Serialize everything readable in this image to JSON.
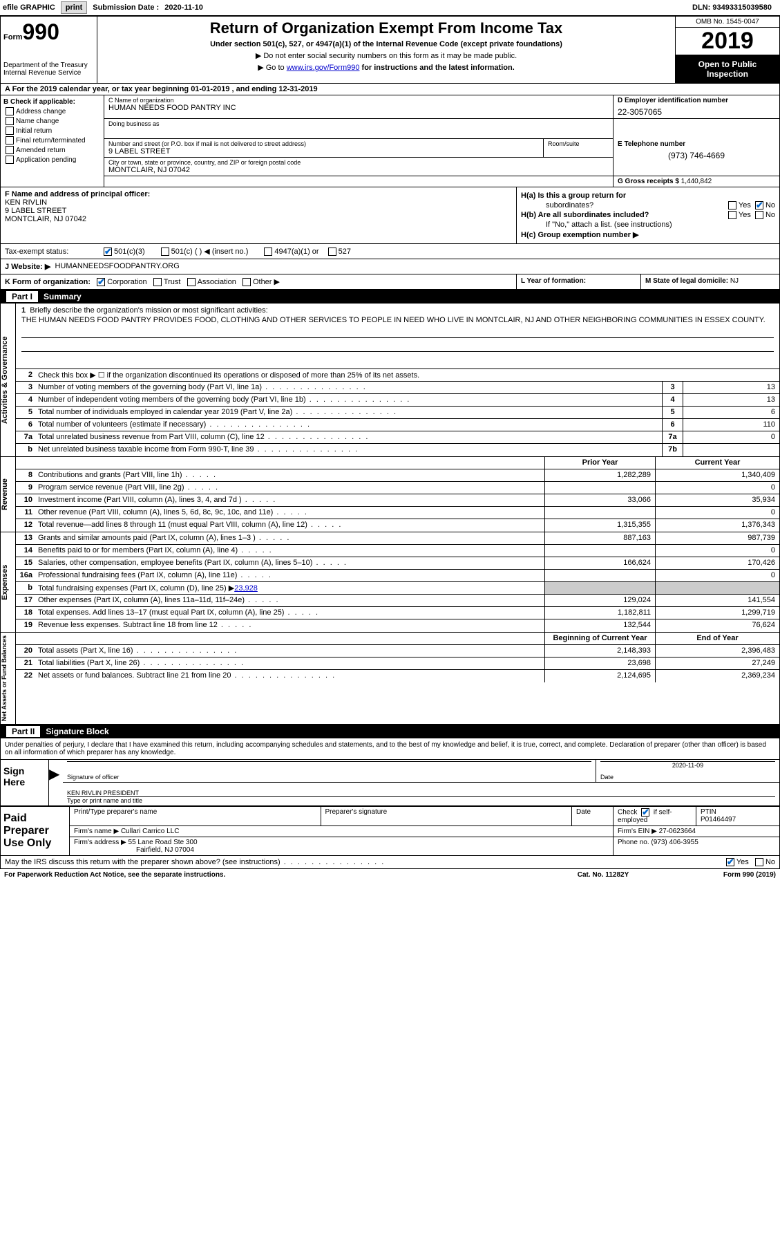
{
  "topbar": {
    "efile_label": "efile GRAPHIC",
    "print": "print",
    "submission_label": "Submission Date :",
    "submission_date": "2020-11-10",
    "dln_label": "DLN:",
    "dln": "93493315039580"
  },
  "header": {
    "form_label": "Form",
    "form_num": "990",
    "dept": "Department of the Treasury\nInternal Revenue Service",
    "title": "Return of Organization Exempt From Income Tax",
    "subtitle": "Under section 501(c), 527, or 4947(a)(1) of the Internal Revenue Code (except private foundations)",
    "instr1": "▶ Do not enter social security numbers on this form as it may be made public.",
    "instr2_pre": "▶ Go to ",
    "instr2_link": "www.irs.gov/Form990",
    "instr2_post": " for instructions and the latest information.",
    "omb": "OMB No. 1545-0047",
    "year": "2019",
    "inspection": "Open to Public Inspection"
  },
  "period": "A For the 2019 calendar year, or tax year beginning 01-01-2019   , and ending 12-31-2019",
  "boxB": {
    "header": "B Check if applicable:",
    "items": [
      "Address change",
      "Name change",
      "Initial return",
      "Final return/terminated",
      "Amended return",
      "Application pending"
    ]
  },
  "boxC": {
    "name_label": "C Name of organization",
    "name": "HUMAN NEEDS FOOD PANTRY INC",
    "dba_label": "Doing business as",
    "addr_label": "Number and street (or P.O. box if mail is not delivered to street address)",
    "room_label": "Room/suite",
    "addr": "9 LABEL STREET",
    "city_label": "City or town, state or province, country, and ZIP or foreign postal code",
    "city": "MONTCLAIR, NJ  07042"
  },
  "boxD": {
    "label": "D Employer identification number",
    "val": "22-3057065"
  },
  "boxE": {
    "label": "E Telephone number",
    "val": "(973) 746-4669"
  },
  "boxG": {
    "label": "G Gross receipts $",
    "val": "1,440,842"
  },
  "boxF": {
    "label": "F  Name and address of principal officer:",
    "name": "KEN RIVLIN",
    "addr1": "9 LABEL STREET",
    "addr2": "MONTCLAIR, NJ  07042"
  },
  "boxH": {
    "a_label": "H(a)  Is this a group return for",
    "a_sub": "subordinates?",
    "b_label": "H(b)  Are all subordinates included?",
    "b_note": "If \"No,\" attach a list. (see instructions)",
    "c_label": "H(c)  Group exemption number ▶",
    "yes": "Yes",
    "no": "No"
  },
  "taxStatus": {
    "label": "Tax-exempt status:",
    "opt1": "501(c)(3)",
    "opt2": "501(c) (   ) ◀ (insert no.)",
    "opt3": "4947(a)(1) or",
    "opt4": "527"
  },
  "website": {
    "label": "J   Website: ▶",
    "val": "HUMANNEEDSFOODPANTRY.ORG"
  },
  "boxK": {
    "label": "K Form of organization:",
    "opts": [
      "Corporation",
      "Trust",
      "Association",
      "Other ▶"
    ]
  },
  "boxL": {
    "label": "L Year of formation:"
  },
  "boxM": {
    "label": "M State of legal domicile:",
    "val": "NJ"
  },
  "partI": {
    "header_part": "Part I",
    "header_title": "Summary",
    "q1_label": "1",
    "q1_text": "Briefly describe the organization's mission or most significant activities:",
    "q1_mission": "THE HUMAN NEEDS FOOD PANTRY PROVIDES FOOD, CLOTHING AND OTHER SERVICES TO PEOPLE IN NEED WHO LIVE IN MONTCLAIR, NJ AND OTHER NEIGHBORING COMMUNITIES IN ESSEX COUNTY.",
    "q2_text": "Check this box ▶ ☐  if the organization discontinued its operations or disposed of more than 25% of its net assets.",
    "side1": "Activities & Governance",
    "side2": "Revenue",
    "side3": "Expenses",
    "side4": "Net Assets or Fund Balances",
    "col_prior": "Prior Year",
    "col_current": "Current Year",
    "col_begin": "Beginning of Current Year",
    "col_end": "End of Year",
    "lines_gov": [
      {
        "n": "3",
        "t": "Number of voting members of the governing body (Part VI, line 1a)",
        "box": "3",
        "v": "13"
      },
      {
        "n": "4",
        "t": "Number of independent voting members of the governing body (Part VI, line 1b)",
        "box": "4",
        "v": "13"
      },
      {
        "n": "5",
        "t": "Total number of individuals employed in calendar year 2019 (Part V, line 2a)",
        "box": "5",
        "v": "6"
      },
      {
        "n": "6",
        "t": "Total number of volunteers (estimate if necessary)",
        "box": "6",
        "v": "110"
      },
      {
        "n": "7a",
        "t": "Total unrelated business revenue from Part VIII, column (C), line 12",
        "box": "7a",
        "v": "0"
      },
      {
        "n": "b",
        "t": "Net unrelated business taxable income from Form 990-T, line 39",
        "box": "7b",
        "v": ""
      }
    ],
    "lines_rev": [
      {
        "n": "8",
        "t": "Contributions and grants (Part VIII, line 1h)",
        "p": "1,282,289",
        "c": "1,340,409"
      },
      {
        "n": "9",
        "t": "Program service revenue (Part VIII, line 2g)",
        "p": "",
        "c": "0"
      },
      {
        "n": "10",
        "t": "Investment income (Part VIII, column (A), lines 3, 4, and 7d )",
        "p": "33,066",
        "c": "35,934"
      },
      {
        "n": "11",
        "t": "Other revenue (Part VIII, column (A), lines 5, 6d, 8c, 9c, 10c, and 11e)",
        "p": "",
        "c": "0"
      },
      {
        "n": "12",
        "t": "Total revenue—add lines 8 through 11 (must equal Part VIII, column (A), line 12)",
        "p": "1,315,355",
        "c": "1,376,343"
      }
    ],
    "lines_exp": [
      {
        "n": "13",
        "t": "Grants and similar amounts paid (Part IX, column (A), lines 1–3 )",
        "p": "887,163",
        "c": "987,739"
      },
      {
        "n": "14",
        "t": "Benefits paid to or for members (Part IX, column (A), line 4)",
        "p": "",
        "c": "0"
      },
      {
        "n": "15",
        "t": "Salaries, other compensation, employee benefits (Part IX, column (A), lines 5–10)",
        "p": "166,624",
        "c": "170,426"
      },
      {
        "n": "16a",
        "t": "Professional fundraising fees (Part IX, column (A), line 11e)",
        "p": "",
        "c": "0"
      },
      {
        "n": "b",
        "t": "Total fundraising expenses (Part IX, column (D), line 25) ▶23,928",
        "p": "shaded",
        "c": "shaded"
      },
      {
        "n": "17",
        "t": "Other expenses (Part IX, column (A), lines 11a–11d, 11f–24e)",
        "p": "129,024",
        "c": "141,554"
      },
      {
        "n": "18",
        "t": "Total expenses. Add lines 13–17 (must equal Part IX, column (A), line 25)",
        "p": "1,182,811",
        "c": "1,299,719"
      },
      {
        "n": "19",
        "t": "Revenue less expenses. Subtract line 18 from line 12",
        "p": "132,544",
        "c": "76,624"
      }
    ],
    "lines_net": [
      {
        "n": "20",
        "t": "Total assets (Part X, line 16)",
        "p": "2,148,393",
        "c": "2,396,483"
      },
      {
        "n": "21",
        "t": "Total liabilities (Part X, line 26)",
        "p": "23,698",
        "c": "27,249"
      },
      {
        "n": "22",
        "t": "Net assets or fund balances. Subtract line 21 from line 20",
        "p": "2,124,695",
        "c": "2,369,234"
      }
    ]
  },
  "partII": {
    "header_part": "Part II",
    "header_title": "Signature Block",
    "penalty": "Under penalties of perjury, I declare that I have examined this return, including accompanying schedules and statements, and to the best of my knowledge and belief, it is true, correct, and complete. Declaration of preparer (other than officer) is based on all information of which preparer has any knowledge.",
    "sign_here": "Sign Here",
    "sig_officer": "Signature of officer",
    "sig_date_label": "Date",
    "sig_date": "2020-11-09",
    "sig_name": "KEN RIVLIN  PRESIDENT",
    "sig_type": "Type or print name and title",
    "paid_prep": "Paid Preparer Use Only",
    "prep_name_label": "Print/Type preparer's name",
    "prep_sig_label": "Preparer's signature",
    "prep_date_label": "Date",
    "prep_check_label": "Check ☑ if self-employed",
    "ptin_label": "PTIN",
    "ptin": "P01464497",
    "firm_name_label": "Firm's name      ▶",
    "firm_name": "Cullari Carrico LLC",
    "firm_ein_label": "Firm's EIN ▶",
    "firm_ein": "27-0623664",
    "firm_addr_label": "Firm's address ▶",
    "firm_addr1": "55 Lane Road Ste 300",
    "firm_addr2": "Fairfield, NJ  07004",
    "phone_label": "Phone no.",
    "phone": "(973) 406-3955",
    "discuss": "May the IRS discuss this return with the preparer shown above? (see instructions)",
    "yes": "Yes",
    "no": "No"
  },
  "footer": {
    "paperwork": "For Paperwork Reduction Act Notice, see the separate instructions.",
    "cat": "Cat. No. 11282Y",
    "form": "Form 990 (2019)"
  }
}
